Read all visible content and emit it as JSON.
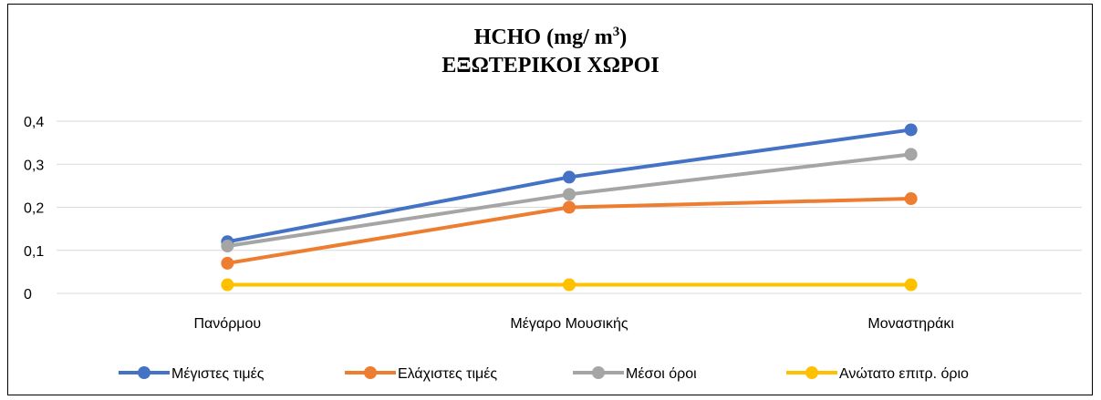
{
  "chart_data": {
    "type": "line",
    "title_line1": "HCHO (mg/ m",
    "title_sup": "3",
    "title_line1_end": ")",
    "title_line2": "ΕΞΩΤΕΡΙΚΟΙ ΧΩΡΟΙ",
    "categories": [
      "Πανόρμου",
      "Μέγαρο Μουσικής",
      "Μοναστηράκι"
    ],
    "ylim": [
      0,
      0.4
    ],
    "yticks": [
      "0",
      "0,1",
      "0,2",
      "0,3",
      "0,4"
    ],
    "grid": true,
    "legend_position": "bottom",
    "series": [
      {
        "name": "Μέγιστες τιμές",
        "color": "#4472C4",
        "values": [
          0.12,
          0.27,
          0.38
        ]
      },
      {
        "name": "Ελάχιστες τιμές",
        "color": "#ED7D31",
        "values": [
          0.07,
          0.2,
          0.22
        ]
      },
      {
        "name": "Μέσοι όροι",
        "color": "#A5A5A5",
        "values": [
          0.11,
          0.23,
          0.323
        ]
      },
      {
        "name": "Ανώτατο  επιτρ. όριο",
        "color": "#FFC000",
        "values": [
          0.02,
          0.02,
          0.02
        ]
      }
    ]
  }
}
